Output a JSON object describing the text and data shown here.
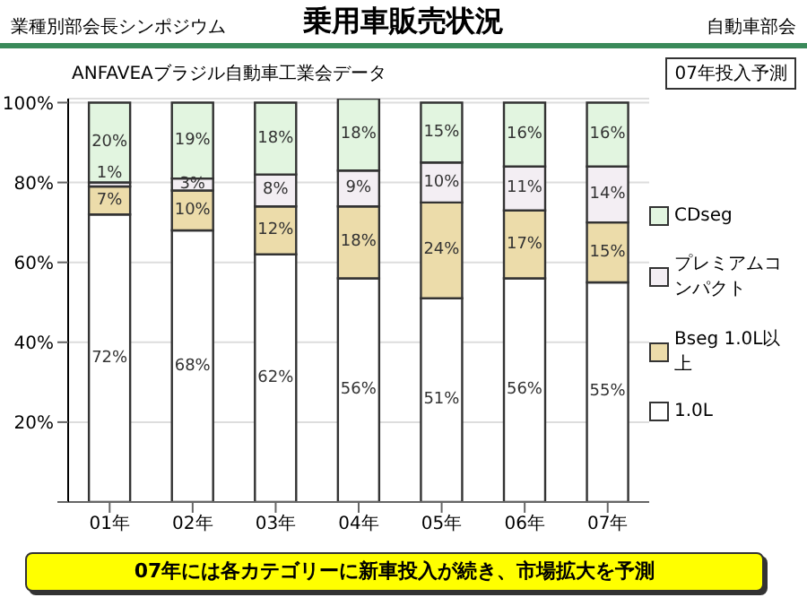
{
  "chart_data": {
    "type": "bar",
    "stacked": true,
    "title": "乗用車販売状況",
    "annotations": [
      "業種別部会長シンポジウム",
      "自動車部会",
      "ANFAVEAブラジル自動車工業会データ",
      "07年投入予測",
      "07年には各カテゴリーに新車投入が続き、市場拡大を予測"
    ],
    "categories": [
      "01年",
      "02年",
      "03年",
      "04年",
      "05年",
      "06年",
      "07年"
    ],
    "series": [
      {
        "name": "1.0L",
        "color": "#ffffff",
        "values": [
          72,
          68,
          62,
          56,
          51,
          56,
          55
        ],
        "value_labels": [
          "72%",
          "68%",
          "62%",
          "56%",
          "51%",
          "56%",
          "55%"
        ]
      },
      {
        "name": "Bseg 1.0L以上",
        "color": "#ecdcaa",
        "values": [
          7,
          10,
          12,
          18,
          24,
          17,
          15
        ],
        "value_labels": [
          "7%",
          "10%",
          "12%",
          "18%",
          "24%",
          "17%",
          "15%"
        ]
      },
      {
        "name": "プレミアムコンパクト",
        "color": "#f3eef3",
        "values": [
          1,
          3,
          8,
          9,
          10,
          11,
          14
        ],
        "value_labels": [
          "1%",
          "3%",
          "8%",
          "9%",
          "10%",
          "11%",
          "14%"
        ]
      },
      {
        "name": "CDseg",
        "color": "#e2f5e0",
        "values": [
          20,
          19,
          18,
          18,
          15,
          16,
          16
        ],
        "value_labels": [
          "20%",
          "19%",
          "18%",
          "18%",
          "15%",
          "16%",
          "16%"
        ]
      }
    ],
    "ylim": [
      0,
      101
    ],
    "yticks": [
      {
        "value": 0,
        "label": null
      },
      {
        "value": 20,
        "label": "20%"
      },
      {
        "value": 40,
        "label": "40%"
      },
      {
        "value": 60,
        "label": "60%"
      },
      {
        "value": 80,
        "label": "80%"
      },
      {
        "value": 100,
        "label": "100%"
      }
    ],
    "grid": "y",
    "legend": "right"
  }
}
